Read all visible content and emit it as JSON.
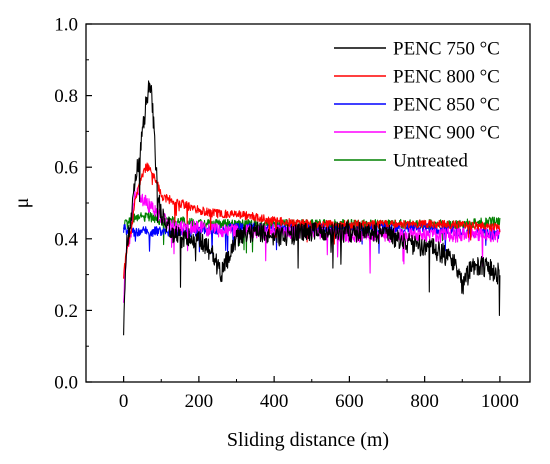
{
  "chart_data": {
    "type": "line",
    "title": "",
    "xlabel": "Sliding distance (m)",
    "ylabel": "μ",
    "xlim": [
      -100,
      1080
    ],
    "ylim": [
      0.0,
      1.0
    ],
    "xticks": [
      0,
      200,
      400,
      600,
      800,
      1000
    ],
    "xtick_labels": [
      "0",
      "200",
      "400",
      "600",
      "800",
      "1000"
    ],
    "yticks": [
      0.0,
      0.2,
      0.4,
      0.6,
      0.8,
      1.0
    ],
    "ytick_labels": [
      "0.0",
      "0.2",
      "0.4",
      "0.6",
      "0.8",
      "1.0"
    ],
    "grid": false,
    "legend_position": "top-right",
    "series": [
      {
        "name": "PENC 750 °C",
        "color": "#000000",
        "x": [
          0,
          5,
          10,
          20,
          30,
          40,
          50,
          60,
          70,
          80,
          90,
          100,
          120,
          150,
          180,
          200,
          230,
          260,
          300,
          350,
          400,
          450,
          500,
          550,
          600,
          650,
          700,
          750,
          800,
          850,
          880,
          900,
          930,
          960,
          1000
        ],
        "y": [
          0.16,
          0.33,
          0.4,
          0.45,
          0.55,
          0.62,
          0.7,
          0.78,
          0.85,
          0.72,
          0.52,
          0.47,
          0.43,
          0.4,
          0.4,
          0.39,
          0.37,
          0.3,
          0.4,
          0.42,
          0.41,
          0.41,
          0.42,
          0.42,
          0.42,
          0.42,
          0.41,
          0.39,
          0.38,
          0.36,
          0.33,
          0.27,
          0.33,
          0.32,
          0.3
        ],
        "noise": 0.03
      },
      {
        "name": "PENC 800 °C",
        "color": "#ff0000",
        "x": [
          0,
          5,
          10,
          20,
          30,
          40,
          50,
          60,
          70,
          80,
          90,
          100,
          120,
          150,
          200,
          250,
          300,
          350,
          400,
          500,
          600,
          700,
          800,
          900,
          1000
        ],
        "y": [
          0.3,
          0.34,
          0.38,
          0.42,
          0.5,
          0.55,
          0.58,
          0.6,
          0.6,
          0.58,
          0.55,
          0.52,
          0.51,
          0.5,
          0.48,
          0.47,
          0.47,
          0.46,
          0.45,
          0.44,
          0.44,
          0.44,
          0.44,
          0.44,
          0.43
        ],
        "noise": 0.012
      },
      {
        "name": "PENC 850 °C",
        "color": "#0000ff",
        "x": [
          0,
          10,
          30,
          60,
          100,
          150,
          200,
          300,
          400,
          500,
          600,
          700,
          800,
          900,
          1000
        ],
        "y": [
          0.43,
          0.42,
          0.42,
          0.42,
          0.42,
          0.42,
          0.42,
          0.43,
          0.43,
          0.43,
          0.43,
          0.43,
          0.43,
          0.42,
          0.41
        ],
        "noise": 0.014
      },
      {
        "name": "PENC 900 °C",
        "color": "#ff00ff",
        "x": [
          0,
          5,
          10,
          20,
          30,
          40,
          50,
          60,
          70,
          80,
          100,
          120,
          150,
          200,
          300,
          400,
          500,
          600,
          700,
          800,
          900,
          1000
        ],
        "y": [
          0.24,
          0.32,
          0.38,
          0.42,
          0.52,
          0.53,
          0.51,
          0.5,
          0.49,
          0.48,
          0.46,
          0.44,
          0.43,
          0.43,
          0.42,
          0.42,
          0.42,
          0.41,
          0.41,
          0.41,
          0.41,
          0.41
        ],
        "noise": 0.02
      },
      {
        "name": "Untreated",
        "color": "#008000",
        "x": [
          0,
          10,
          30,
          50,
          80,
          100,
          150,
          200,
          300,
          400,
          500,
          600,
          700,
          800,
          900,
          1000
        ],
        "y": [
          0.44,
          0.44,
          0.46,
          0.46,
          0.46,
          0.45,
          0.45,
          0.44,
          0.44,
          0.44,
          0.44,
          0.44,
          0.44,
          0.44,
          0.44,
          0.45
        ],
        "noise": 0.014
      }
    ]
  }
}
